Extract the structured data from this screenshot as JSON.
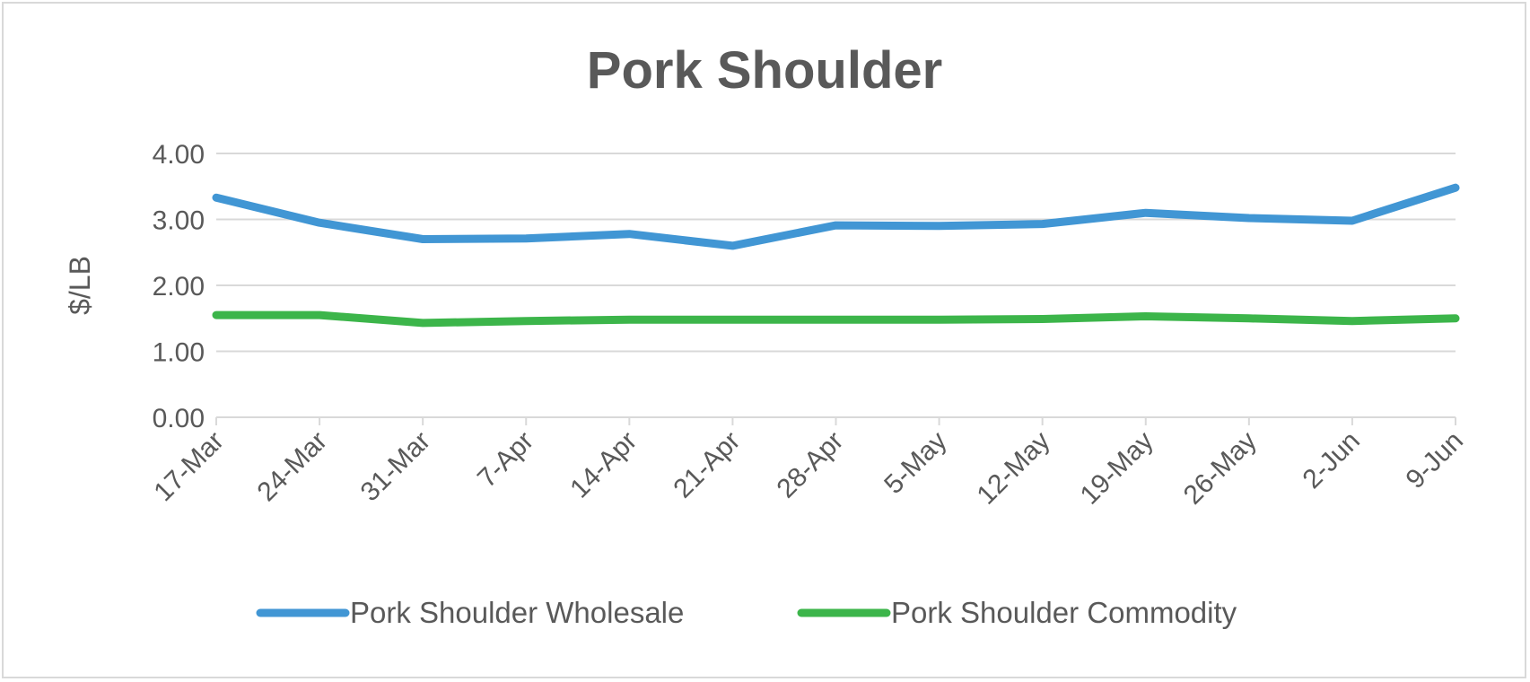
{
  "chart_data": {
    "type": "line",
    "title": "Pork Shoulder",
    "ylabel": "$/LB",
    "xlabel": "",
    "categories": [
      "17-Mar",
      "24-Mar",
      "31-Mar",
      "7-Apr",
      "14-Apr",
      "21-Apr",
      "28-Apr",
      "5-May",
      "12-May",
      "19-May",
      "26-May",
      "2-Jun",
      "9-Jun"
    ],
    "ylim": [
      0,
      4
    ],
    "yticks": [
      "0.00",
      "1.00",
      "2.00",
      "3.00",
      "4.00"
    ],
    "grid": true,
    "legend_position": "bottom",
    "series": [
      {
        "name": "Pork Shoulder Wholesale",
        "color": "#4196d4",
        "values": [
          3.33,
          2.95,
          2.7,
          2.71,
          2.78,
          2.6,
          2.91,
          2.9,
          2.93,
          3.1,
          3.02,
          2.98,
          3.48
        ]
      },
      {
        "name": "Pork Shoulder Commodity",
        "color": "#3cb54a",
        "values": [
          1.55,
          1.55,
          1.43,
          1.46,
          1.48,
          1.48,
          1.48,
          1.48,
          1.49,
          1.53,
          1.5,
          1.46,
          1.5
        ]
      }
    ]
  }
}
